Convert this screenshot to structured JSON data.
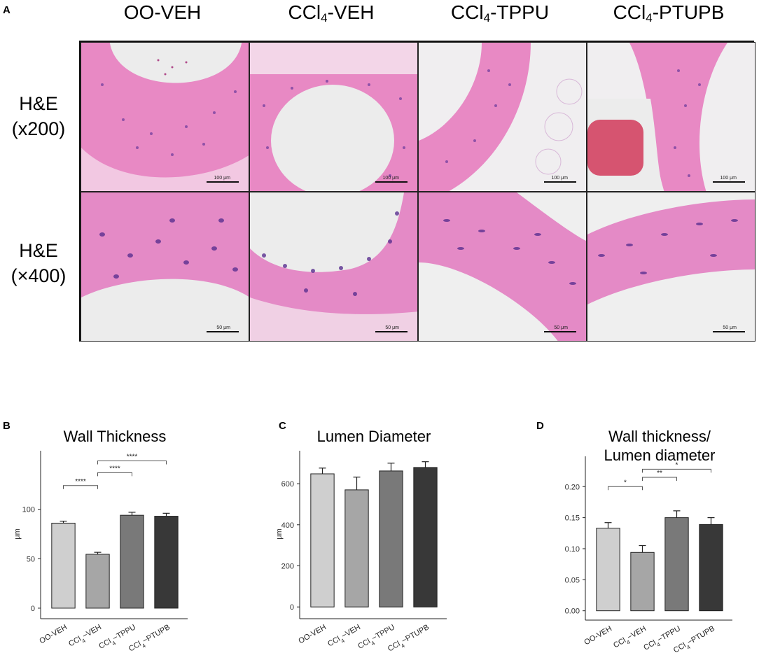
{
  "panel_a": {
    "letter": "A",
    "columns": [
      {
        "main": "OO-VEH",
        "sub": "",
        "rest": ""
      },
      {
        "main": "CCl",
        "sub": "4",
        "rest": "-VEH"
      },
      {
        "main": "CCl",
        "sub": "4",
        "rest": "-TPPU"
      },
      {
        "main": "CCl",
        "sub": "4",
        "rest": "-PTUPB"
      }
    ],
    "rows": [
      {
        "line1": "H&E",
        "line2": "(x200)",
        "scale": "100 μm"
      },
      {
        "line1": "H&E",
        "line2": "(×400)",
        "scale": "50 μm"
      }
    ],
    "colors": {
      "tissue": "#e889c4",
      "nuclei": "#6a3a9c",
      "lumen": "#ececec",
      "blood": "#d23a5a"
    }
  },
  "chart_data": [
    {
      "letter": "B",
      "type": "bar",
      "title": "Wall Thickness",
      "title2": "",
      "ylabel": "μm",
      "categories": [
        {
          "main": "OO-VEH",
          "sub": "",
          "rest": ""
        },
        {
          "main": "CCl",
          "sub": "4",
          "rest": "−VEH"
        },
        {
          "main": "CCl",
          "sub": "4",
          "rest": "−TPPU"
        },
        {
          "main": "CCl",
          "sub": "4",
          "rest": "−PTUPB"
        }
      ],
      "values": [
        86,
        54.5,
        94,
        93
      ],
      "errors": [
        2,
        2,
        3,
        3
      ],
      "ylim": [
        -5,
        155
      ],
      "yticks": [
        0,
        50,
        100
      ],
      "tick_labels": [
        "0",
        "50",
        "100"
      ],
      "colors": [
        "#cfcfcf",
        "#a6a6a6",
        "#797979",
        "#383838"
      ],
      "significance": [
        {
          "from": 0,
          "to": 1,
          "y": 124,
          "label": "****"
        },
        {
          "from": 1,
          "to": 2,
          "y": 137,
          "label": "****"
        },
        {
          "from": 1,
          "to": 3,
          "y": 149,
          "label": "****"
        }
      ]
    },
    {
      "letter": "C",
      "type": "bar",
      "title": "Lumen Diameter",
      "title2": "",
      "ylabel": "μm",
      "categories": [
        {
          "main": "OO-VEH",
          "sub": "",
          "rest": ""
        },
        {
          "main": "CCl",
          "sub": "4",
          "rest": "−VEH"
        },
        {
          "main": "CCl",
          "sub": "4",
          "rest": "−TPPU"
        },
        {
          "main": "CCl",
          "sub": "4",
          "rest": "−PTUPB"
        }
      ],
      "values": [
        648,
        570,
        662,
        679
      ],
      "errors": [
        28,
        62,
        38,
        28
      ],
      "ylim": [
        -30,
        740
      ],
      "yticks": [
        0,
        200,
        400,
        600
      ],
      "tick_labels": [
        "0",
        "200",
        "400",
        "600"
      ],
      "colors": [
        "#cfcfcf",
        "#a6a6a6",
        "#797979",
        "#383838"
      ],
      "significance": []
    },
    {
      "letter": "D",
      "type": "bar",
      "title": "Wall thickness/",
      "title2": "Lumen diameter",
      "ylabel": "",
      "categories": [
        {
          "main": "OO-VEH",
          "sub": "",
          "rest": ""
        },
        {
          "main": "CCl",
          "sub": "4",
          "rest": "−VEH"
        },
        {
          "main": "CCl",
          "sub": "4",
          "rest": "−TPPU"
        },
        {
          "main": "CCl",
          "sub": "4",
          "rest": "−PTUPB"
        }
      ],
      "values": [
        0.133,
        0.094,
        0.15,
        0.139
      ],
      "errors": [
        0.009,
        0.011,
        0.011,
        0.011
      ],
      "ylim": [
        -0.006,
        0.242
      ],
      "yticks": [
        0,
        0.05,
        0.1,
        0.15,
        0.2
      ],
      "tick_labels": [
        "0.00",
        "0.05",
        "0.10",
        "0.15",
        "0.20"
      ],
      "colors": [
        "#cfcfcf",
        "#a6a6a6",
        "#797979",
        "#383838"
      ],
      "significance": [
        {
          "from": 0,
          "to": 1,
          "y": 0.2,
          "label": "*"
        },
        {
          "from": 1,
          "to": 2,
          "y": 0.215,
          "label": "**"
        },
        {
          "from": 1,
          "to": 3,
          "y": 0.228,
          "label": "*"
        }
      ]
    }
  ]
}
